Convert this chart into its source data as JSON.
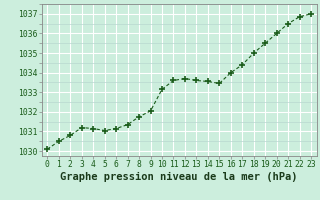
{
  "x": [
    0,
    1,
    2,
    3,
    4,
    5,
    6,
    7,
    8,
    9,
    10,
    11,
    12,
    13,
    14,
    15,
    16,
    17,
    18,
    19,
    20,
    21,
    22,
    23
  ],
  "y": [
    1030.1,
    1030.5,
    1030.8,
    1031.2,
    1031.15,
    1031.05,
    1031.15,
    1031.35,
    1031.75,
    1032.05,
    1033.15,
    1033.6,
    1033.7,
    1033.6,
    1033.55,
    1033.45,
    1034.0,
    1034.4,
    1035.0,
    1035.5,
    1036.0,
    1036.5,
    1036.85,
    1037.0
  ],
  "line_color": "#1a5c1a",
  "marker_color": "#1a5c1a",
  "bg_color": "#cceedd",
  "major_grid_color": "#ffffff",
  "minor_grid_color": "#b8d8d0",
  "xlabel": "Graphe pression niveau de la mer (hPa)",
  "ylim": [
    1029.75,
    1037.5
  ],
  "xlim": [
    -0.5,
    23.5
  ],
  "yticks": [
    1030,
    1031,
    1032,
    1033,
    1034,
    1035,
    1036,
    1037
  ],
  "xticks": [
    0,
    1,
    2,
    3,
    4,
    5,
    6,
    7,
    8,
    9,
    10,
    11,
    12,
    13,
    14,
    15,
    16,
    17,
    18,
    19,
    20,
    21,
    22,
    23
  ],
  "tick_label_fontsize": 5.8,
  "xlabel_fontsize": 7.5,
  "tick_color": "#1a5c1a",
  "spine_color": "#888888"
}
